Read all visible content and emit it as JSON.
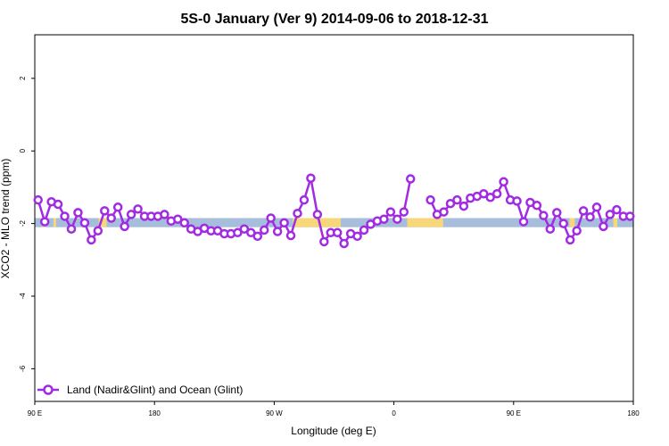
{
  "chart_data": {
    "type": "line",
    "title": "5S-0 January (Ver 9)   2014-09-06 to 2018-12-31",
    "xlabel": "Longitude (deg E)",
    "ylabel": "XCO2 - MLO trend (ppm)",
    "xlim": [
      90,
      540
    ],
    "ylim": [
      -6.9,
      3.2
    ],
    "x_ticks": [
      {
        "value": 90,
        "label": "90 E"
      },
      {
        "value": 180,
        "label": "180"
      },
      {
        "value": 270,
        "label": "90 W"
      },
      {
        "value": 360,
        "label": "0"
      },
      {
        "value": 450,
        "label": "90 E"
      },
      {
        "value": 540,
        "label": "180"
      }
    ],
    "y_ticks": [
      {
        "value": 2,
        "label": "2"
      },
      {
        "value": 0,
        "label": "0"
      },
      {
        "value": -2,
        "label": "-2"
      },
      {
        "value": -4,
        "label": "-4"
      },
      {
        "value": -6,
        "label": "-6"
      }
    ],
    "legend": {
      "position": "bottom-left",
      "entries": [
        "Land (Nadir&Glint) and Ocean (Glint)"
      ]
    },
    "background_band": {
      "y_range": [
        -2.1,
        -1.85
      ],
      "ocean_color": "#a6bddb",
      "land_color": "#f7d77a",
      "land_segments": [
        [
          96.5,
          98
        ],
        [
          104,
          106
        ],
        [
          138,
          144
        ],
        [
          284,
          320
        ],
        [
          370,
          397
        ],
        [
          492,
          496
        ],
        [
          525,
          528
        ]
      ]
    },
    "series": [
      {
        "color": "#a12be2",
        "x": [
          92.5,
          97.5,
          102.5,
          107.5,
          112.5,
          117.5,
          122.5,
          127.5,
          132.5,
          137.5,
          142.5,
          147.5,
          152.5,
          157.5,
          162.5,
          167.5,
          172.5,
          177.5,
          182.5,
          187.5,
          192.5,
          197.5,
          202.5,
          207.5,
          212.5,
          217.5,
          222.5,
          227.5,
          232.5,
          237.5,
          242.5,
          247.5,
          252.5,
          257.5,
          262.5,
          267.5,
          272.5,
          277.5,
          282.5,
          287.5,
          292.5,
          297.5,
          302.5,
          307.5,
          312.5,
          317.5,
          322.5,
          327.5,
          332.5,
          337.5,
          342.5,
          347.5,
          352.5,
          357.5,
          362.5,
          367.5,
          372.5,
          null,
          387.5,
          392.5,
          397.5,
          402.5,
          407.5,
          412.5,
          417.5,
          422.5,
          427.5,
          432.5,
          437.5,
          442.5,
          447.5,
          452.5,
          457.5,
          462.5,
          467.5,
          472.5,
          477.5,
          482.5,
          487.5,
          492.5,
          497.5,
          502.5,
          507.5,
          512.5,
          517.5,
          522.5,
          527.5,
          532.5,
          537.5
        ],
        "y": [
          -1.35,
          -1.95,
          -1.4,
          -1.47,
          -1.8,
          -2.15,
          -1.7,
          -1.98,
          -2.45,
          -2.2,
          -1.65,
          -1.85,
          -1.55,
          -2.08,
          -1.75,
          -1.6,
          -1.8,
          -1.8,
          -1.8,
          -1.75,
          -1.93,
          -1.88,
          -1.98,
          -2.15,
          -2.22,
          -2.13,
          -2.2,
          -2.2,
          -2.28,
          -2.28,
          -2.25,
          -2.15,
          -2.25,
          -2.35,
          -2.18,
          -1.85,
          -2.22,
          -1.98,
          -2.33,
          -1.72,
          -1.35,
          -0.75,
          -1.75,
          -2.5,
          -2.25,
          -2.25,
          -2.55,
          -2.28,
          -2.35,
          -2.18,
          -2.02,
          -1.93,
          -1.88,
          -1.68,
          -1.88,
          -1.68,
          -0.77,
          null,
          -1.35,
          -1.75,
          -1.68,
          -1.45,
          -1.35,
          -1.52,
          -1.3,
          -1.25,
          -1.18,
          -1.28,
          -1.18,
          -0.85,
          -1.35,
          -1.38,
          -1.95,
          -1.42,
          -1.5,
          -1.78,
          -2.15,
          -1.7,
          -2.0,
          -2.45,
          -2.2,
          -1.65,
          -1.82,
          -1.55,
          -2.08,
          -1.75,
          -1.62,
          -1.8,
          -1.8
        ]
      }
    ]
  }
}
